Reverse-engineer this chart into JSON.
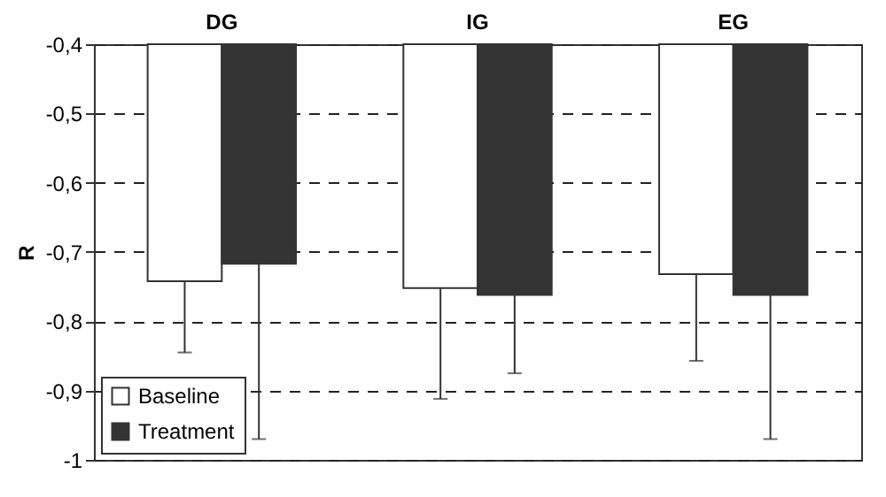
{
  "chart_data": {
    "type": "bar",
    "categories": [
      "DG",
      "IG",
      "EG"
    ],
    "ylabel": "R",
    "ylim": [
      -1,
      -0.4
    ],
    "yticks": [
      {
        "value": -0.4,
        "label": "-0,4"
      },
      {
        "value": -0.5,
        "label": "-0,5"
      },
      {
        "value": -0.6,
        "label": "-0,6"
      },
      {
        "value": -0.7,
        "label": "-0,7"
      },
      {
        "value": -0.8,
        "label": "-0,8"
      },
      {
        "value": -0.9,
        "label": "-0,9"
      },
      -1
    ],
    "grid": "y",
    "legend": "bottom left",
    "series": [
      {
        "name": "Baseline",
        "color": "#ffffff",
        "values": [
          -0.742,
          -0.752,
          -0.732
        ],
        "errors": [
          [
            -0.845,
            -0.742
          ],
          [
            -0.912,
            -0.752
          ],
          [
            -0.857,
            -0.732
          ]
        ]
      },
      {
        "name": "Treatment",
        "color": "#333333",
        "values": [
          -0.717,
          -0.762,
          -0.762
        ],
        "errors": [
          [
            -0.97,
            -0.717
          ],
          [
            -0.875,
            -0.762
          ],
          [
            -0.97,
            -0.762
          ]
        ]
      }
    ]
  }
}
